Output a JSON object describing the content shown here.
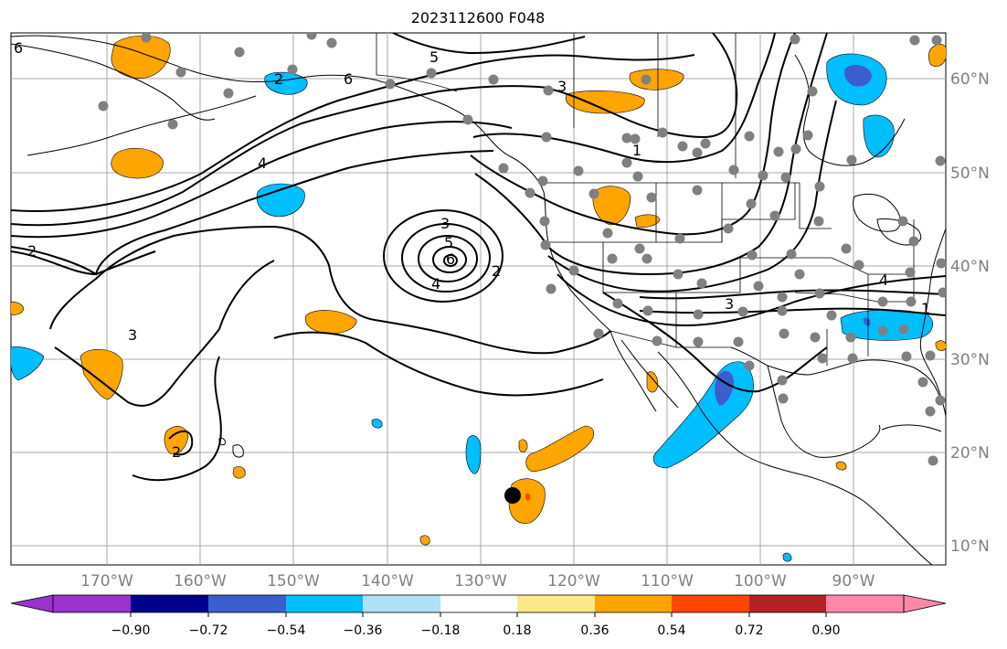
{
  "title": "2023112600 F048",
  "map": {
    "lon_labels": [
      "170°W",
      "160°W",
      "150°W",
      "140°W",
      "130°W",
      "120°W",
      "110°W",
      "100°W",
      "90°W"
    ],
    "lat_labels": [
      "60°N",
      "50°N",
      "40°N",
      "30°N",
      "20°N",
      "10°N"
    ],
    "contour_labels": [
      "6",
      "6",
      "5",
      "3",
      "4",
      "1",
      "3",
      "5",
      "6",
      "4",
      "2",
      "2",
      "3",
      "2",
      "3",
      "4",
      "1",
      "2"
    ],
    "station_color": "#808080",
    "marker_color": "#000000"
  },
  "colorbar": {
    "ticks": [
      "−0.90",
      "−0.72",
      "−0.54",
      "−0.36",
      "−0.18",
      "0.18",
      "0.36",
      "0.54",
      "0.72",
      "0.90"
    ],
    "colors": [
      "#9933cc",
      "#00008b",
      "#3a5fcd",
      "#00bfff",
      "#b0e0f8",
      "#ffffff",
      "#fce98a",
      "#ffa500",
      "#ff4500",
      "#b22222",
      "#ff88aa"
    ]
  }
}
